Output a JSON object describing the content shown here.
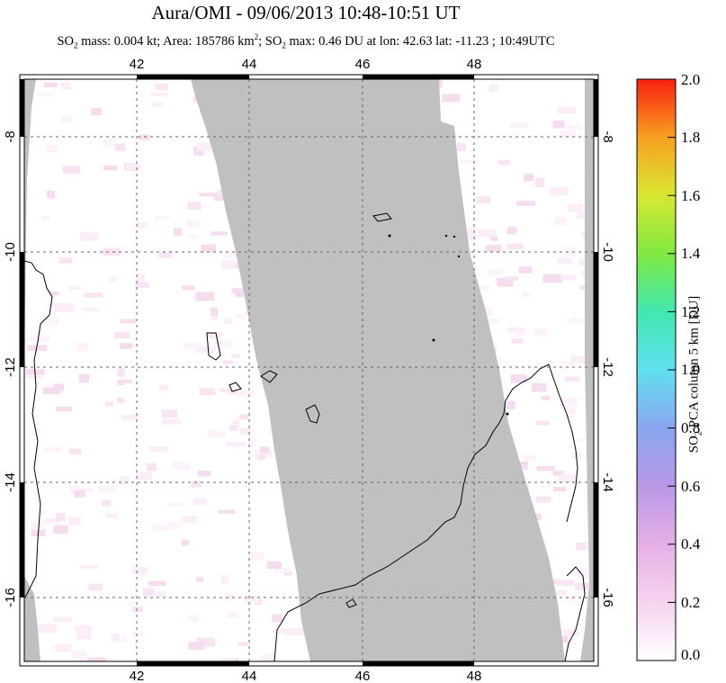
{
  "title": "Aura/OMI - 09/06/2013 10:48-10:51 UT",
  "subtitle": {
    "so2": "SO",
    "sub2": "2",
    "mass_text": " mass: 0.004 kt; Area: 185786 km",
    "sup2": "2",
    "sep": "; SO",
    "max_text": " max: 0.46 DU at lon: 42.63 lat: -11.23 ; 10:49UTC"
  },
  "map": {
    "lon_range": [
      40.0,
      50.0
    ],
    "lat_range": [
      -17.0,
      -7.0
    ],
    "lon_ticks": [
      "42",
      "44",
      "46",
      "48"
    ],
    "lat_ticks": [
      "-8",
      "-10",
      "-12",
      "-14",
      "-16"
    ],
    "colors": {
      "no_data": "#c0c0c0",
      "grid": "#666666",
      "coast": "#000000"
    }
  },
  "colorbar": {
    "ticks": [
      "2.0",
      "1.8",
      "1.6",
      "1.4",
      "1.2",
      "1.0",
      "0.8",
      "0.6",
      "0.4",
      "0.2",
      "0.0"
    ],
    "label_prefix": "SO",
    "label_sub": "2",
    "label_suffix": " PCA column 5 km [DU]"
  }
}
